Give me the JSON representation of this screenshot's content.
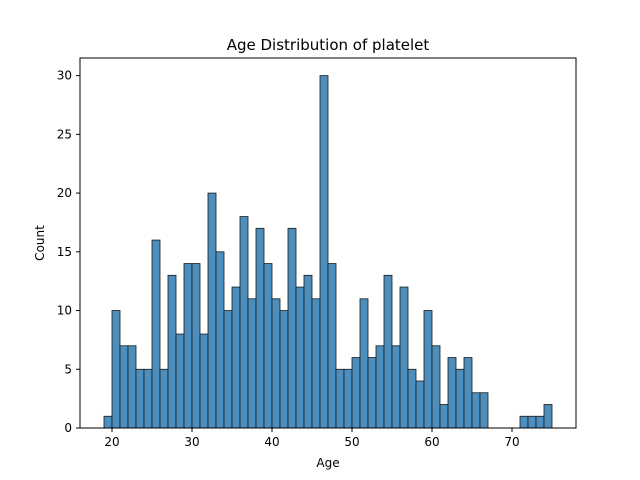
{
  "chart_data": {
    "type": "bar",
    "title": "Age Distribution of platelet",
    "xlabel": "Age",
    "ylabel": "Count",
    "bin_start": 19,
    "bin_width": 1,
    "xlim": [
      16,
      78
    ],
    "ylim": [
      0,
      31.5
    ],
    "xticks": [
      20,
      30,
      40,
      50,
      60,
      70
    ],
    "yticks": [
      0,
      5,
      10,
      15,
      20,
      25,
      30
    ],
    "values": [
      1,
      10,
      7,
      7,
      5,
      5,
      16,
      5,
      13,
      8,
      14,
      14,
      8,
      20,
      15,
      10,
      12,
      18,
      11,
      17,
      14,
      11,
      10,
      17,
      12,
      13,
      11,
      30,
      14,
      5,
      5,
      6,
      11,
      6,
      7,
      13,
      7,
      12,
      5,
      4,
      10,
      7,
      2,
      6,
      5,
      6,
      3,
      3,
      0,
      0,
      0,
      0,
      1,
      1,
      1,
      2
    ],
    "bar_color": "#4c8fbf",
    "edge_color": "#1a1a1a",
    "grid": false,
    "legend": "none"
  }
}
